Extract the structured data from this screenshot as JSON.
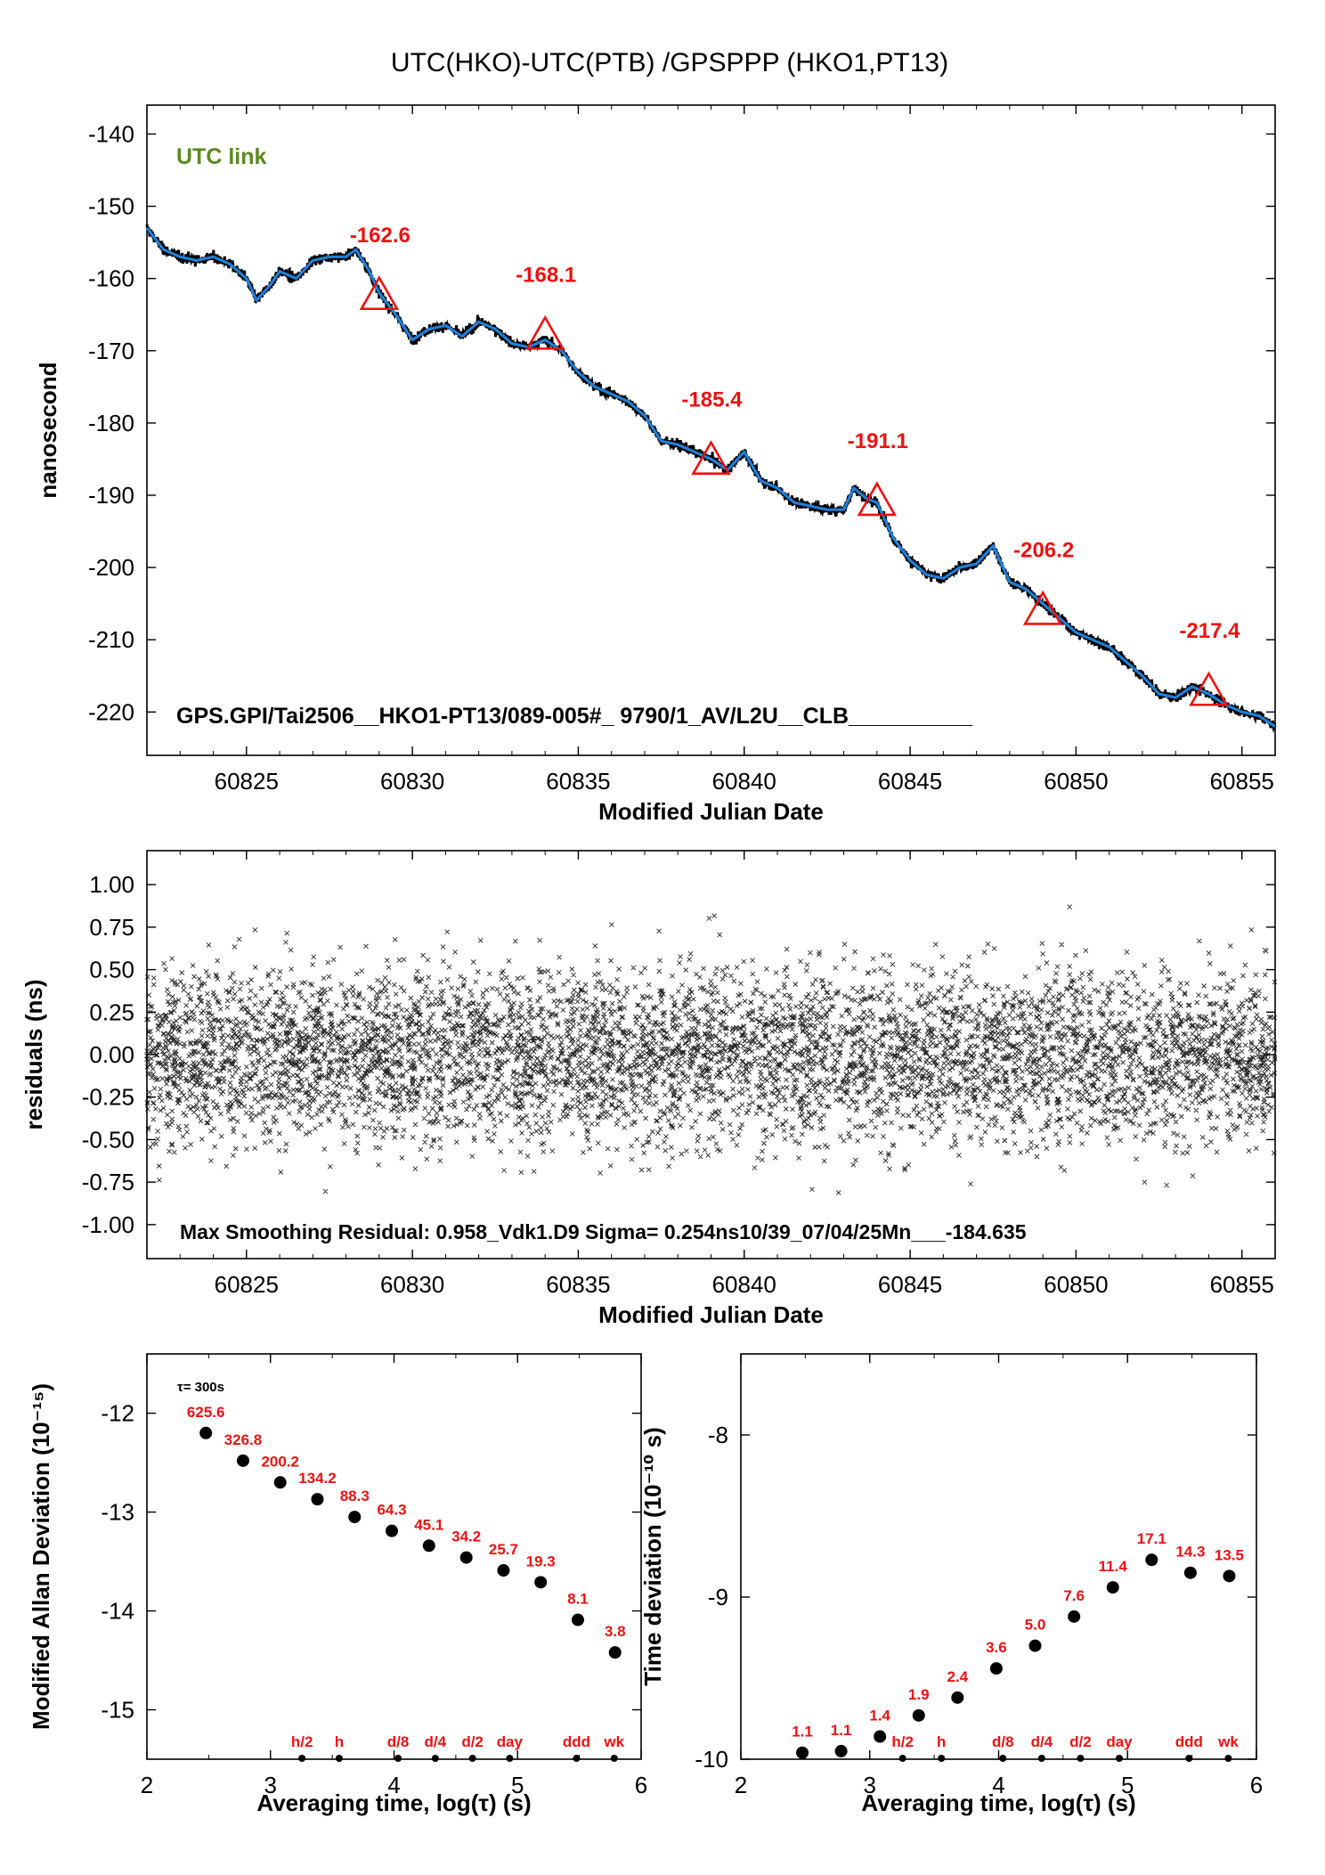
{
  "title": "UTC(HKO)-UTC(PTB)  /GPSPPP  (HKO1,PT13)",
  "colors": {
    "series_line": "#1f7fd6",
    "marker": "#ee1111",
    "link_label": "#5a8a1e",
    "scatter": "#000000"
  },
  "chart_data": [
    {
      "name": "time-link",
      "type": "line",
      "annotation": "UTC link",
      "footer": "GPS.GPI/Tai2506__HKO1-PT13/089-005#_  9790/1_AV/L2U__CLB__________",
      "xlabel": "Modified Julian Date",
      "ylabel": "nanosecond",
      "xlim": [
        60822,
        60856
      ],
      "ylim": [
        -226,
        -136
      ],
      "xticks": [
        "60825",
        "60830",
        "60835",
        "60840",
        "60845",
        "60850",
        "60855"
      ],
      "yticks": [
        "-140",
        "-150",
        "-160",
        "-170",
        "-180",
        "-190",
        "-200",
        "-210",
        "-220"
      ],
      "x": [
        60822,
        60822.5,
        60823,
        60823.5,
        60824,
        60824.5,
        60825,
        60825.3,
        60825.7,
        60826,
        60826.5,
        60827,
        60827.5,
        60828,
        60828.3,
        60828.7,
        60829,
        60829.5,
        60830,
        60830.5,
        60831,
        60831.5,
        60832,
        60832.5,
        60833,
        60833.5,
        60834,
        60834.5,
        60835,
        60835.5,
        60836,
        60836.5,
        60837,
        60837.5,
        60838,
        60838.5,
        60839,
        60839.5,
        60840,
        60840.5,
        60841,
        60841.5,
        60842,
        60842.5,
        60843,
        60843.3,
        60843.7,
        60844,
        60844.5,
        60845,
        60845.5,
        60846,
        60846.5,
        60847,
        60847.5,
        60848,
        60848.5,
        60849,
        60849.5,
        60850,
        60850.5,
        60851,
        60851.5,
        60852,
        60852.5,
        60853,
        60853.5,
        60854,
        60854.5,
        60855,
        60855.5,
        60856
      ],
      "y": [
        -153,
        -156,
        -157,
        -157.5,
        -157,
        -158,
        -160,
        -163,
        -161,
        -159,
        -160,
        -157.5,
        -157,
        -157,
        -156,
        -159,
        -162,
        -165,
        -168.5,
        -167,
        -166.5,
        -168,
        -166,
        -167,
        -169,
        -169.5,
        -168.5,
        -170,
        -173,
        -175,
        -176,
        -177,
        -179,
        -182.5,
        -183,
        -184,
        -185,
        -186.5,
        -184,
        -188,
        -189,
        -191,
        -191.5,
        -192,
        -192,
        -189,
        -190.5,
        -191,
        -196,
        -199,
        -201,
        -201.5,
        -200,
        -199.5,
        -197,
        -202,
        -203,
        -205,
        -207,
        -209,
        -210,
        -211,
        -213,
        -215,
        -217.5,
        -218,
        -216.5,
        -217.5,
        -219,
        -220,
        -220.5,
        -222
      ],
      "markers": {
        "x": [
          60829,
          60834,
          60839,
          60844,
          60849,
          60854
        ],
        "y": [
          -162.6,
          -168.1,
          -185.4,
          -191.1,
          -206.2,
          -217.4
        ],
        "labels": [
          "-162.6",
          "-168.1",
          "-185.4",
          "-191.1",
          "-206.2",
          "-217.4"
        ]
      }
    },
    {
      "name": "residuals",
      "type": "scatter",
      "footer": "Max Smoothing Residual: 0.958_Vdk1.D9  Sigma= 0.254ns10/39_07/04/25Mn___-184.635",
      "xlabel": "Modified Julian Date",
      "ylabel": "residuals (ns)",
      "xlim": [
        60822,
        60856
      ],
      "ylim": [
        -1.2,
        1.2
      ],
      "xticks": [
        "60825",
        "60830",
        "60835",
        "60840",
        "60845",
        "60850",
        "60855"
      ],
      "yticks": [
        "1.00",
        "0.75",
        "0.50",
        "0.25",
        "0.00",
        "-0.25",
        "-0.50",
        "-0.75",
        "-1.00"
      ],
      "sigma": 0.254,
      "point_count": 9790
    },
    {
      "name": "modified-allan-deviation",
      "type": "scatter",
      "annotation": "τ= 300s",
      "xlabel": "Averaging time, log(τ) (s)",
      "ylabel": "Modified Allan Deviation (10⁻¹⁵)",
      "xlim": [
        2,
        6
      ],
      "ylim": [
        -15.5,
        -11.4
      ],
      "xticks": [
        "2",
        "3",
        "4",
        "5",
        "6"
      ],
      "yticks": [
        "-12",
        "-13",
        "-14",
        "-15"
      ],
      "x": [
        2.477,
        2.778,
        3.079,
        3.38,
        3.681,
        3.982,
        4.283,
        4.585,
        4.886,
        5.187,
        5.488,
        5.789
      ],
      "y": [
        -12.2,
        -12.48,
        -12.7,
        -12.87,
        -13.05,
        -13.19,
        -13.34,
        -13.46,
        -13.59,
        -13.71,
        -14.09,
        -14.42
      ],
      "labels": [
        "625.6",
        "326.8",
        "200.2",
        "134.2",
        "88.3",
        "64.3",
        "45.1",
        "34.2",
        "25.7",
        "19.3",
        "8.1",
        "3.8"
      ],
      "reference_marks": [
        {
          "label": "h/2",
          "x": 3.255
        },
        {
          "label": "h",
          "x": 3.556
        },
        {
          "label": "d/8",
          "x": 4.033
        },
        {
          "label": "d/4",
          "x": 4.334
        },
        {
          "label": "d/2",
          "x": 4.635
        },
        {
          "label": "day",
          "x": 4.936
        },
        {
          "label": "ddd",
          "x": 5.477
        },
        {
          "label": "wk",
          "x": 5.782
        }
      ]
    },
    {
      "name": "time-deviation",
      "type": "scatter",
      "xlabel": "Averaging time, log(τ) (s)",
      "ylabel": "Time deviation (10⁻¹⁰ s)",
      "xlim": [
        2,
        6
      ],
      "ylim": [
        -10,
        -7.5
      ],
      "xticks": [
        "2",
        "3",
        "4",
        "5",
        "6"
      ],
      "yticks": [
        "-8",
        "-9",
        "-10"
      ],
      "x": [
        2.477,
        2.778,
        3.079,
        3.38,
        3.681,
        3.982,
        4.283,
        4.585,
        4.886,
        5.187,
        5.488,
        5.789
      ],
      "y": [
        -9.96,
        -9.95,
        -9.86,
        -9.73,
        -9.62,
        -9.44,
        -9.3,
        -9.12,
        -8.94,
        -8.77,
        -8.85,
        -8.87
      ],
      "labels": [
        "1.1",
        "1.1",
        "1.4",
        "1.9",
        "2.4",
        "3.6",
        "5.0",
        "7.6",
        "11.4",
        "17.1",
        "14.3",
        "13.5"
      ],
      "reference_marks": [
        {
          "label": "h/2",
          "x": 3.255
        },
        {
          "label": "h",
          "x": 3.556
        },
        {
          "label": "d/8",
          "x": 4.033
        },
        {
          "label": "d/4",
          "x": 4.334
        },
        {
          "label": "d/2",
          "x": 4.635
        },
        {
          "label": "day",
          "x": 4.936
        },
        {
          "label": "ddd",
          "x": 5.477
        },
        {
          "label": "wk",
          "x": 5.782
        }
      ]
    }
  ]
}
